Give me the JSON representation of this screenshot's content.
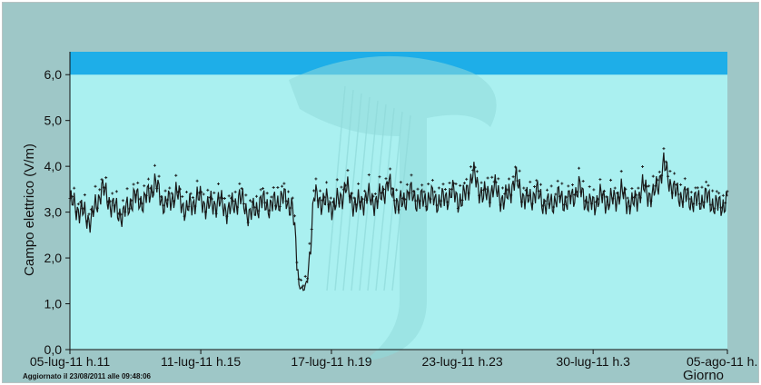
{
  "updated_text": "Aggiornato il 23/08/2011 alle 09:48:06",
  "colors": {
    "outer_bg": "#9ec7c7",
    "plot_bg": "#aaf0f0",
    "limit_band": "#1eaee8",
    "watermark": "#90dada",
    "series_line": "#1a1a1a",
    "markers": "#1a1a1a"
  },
  "chart_data": {
    "type": "line",
    "title": "",
    "xlabel": "Giorno",
    "ylabel": "Campo elettrico (V/m)",
    "ylim": [
      0,
      6.5
    ],
    "xlim_days": [
      0,
      31
    ],
    "yticks": [
      {
        "value": 0,
        "label": "0,0"
      },
      {
        "value": 1,
        "label": "1,0"
      },
      {
        "value": 2,
        "label": "2,0"
      },
      {
        "value": 3,
        "label": "3,0"
      },
      {
        "value": 4,
        "label": "4,0"
      },
      {
        "value": 5,
        "label": "5,0"
      },
      {
        "value": 6,
        "label": "6,0"
      }
    ],
    "xticks": [
      {
        "value": 0,
        "label": "05-lug-11 h.11"
      },
      {
        "value": 6.17,
        "label": "11-lug-11 h.15"
      },
      {
        "value": 12.33,
        "label": "17-lug-11 h.19"
      },
      {
        "value": 18.5,
        "label": "23-lug-11 h.23"
      },
      {
        "value": 24.67,
        "label": "30-lug-11 h.3"
      },
      {
        "value": 31,
        "label": "05-ago-11 h."
      }
    ],
    "limit_band": {
      "from": 6.0,
      "to": 6.5
    },
    "grid": false,
    "series": [
      {
        "values_are": "daily mean electric field (V/m) sampled from the plotted trace, x in days from 05-lug-11 h.11",
        "x": [
          0,
          0.5,
          1,
          1.5,
          2,
          2.5,
          3,
          3.5,
          4,
          4.5,
          5,
          5.5,
          6,
          6.5,
          7,
          7.5,
          8,
          8.5,
          9,
          9.5,
          10,
          10.5,
          10.8,
          11,
          11.2,
          11.5,
          12,
          12.5,
          13,
          13.5,
          14,
          14.5,
          15,
          15.5,
          16,
          16.5,
          17,
          17.5,
          18,
          18.5,
          19,
          19.5,
          20,
          20.5,
          21,
          21.5,
          22,
          22.5,
          23,
          23.5,
          24,
          24.5,
          25,
          25.5,
          26,
          26.5,
          27,
          27.5,
          28,
          28.5,
          29,
          29.5,
          30,
          30.5,
          31
        ],
        "y": [
          3.3,
          3.1,
          2.9,
          3.6,
          3.2,
          3.0,
          3.4,
          3.3,
          3.7,
          3.2,
          3.5,
          3.1,
          3.4,
          3.2,
          3.3,
          3.1,
          3.4,
          3.0,
          3.3,
          3.2,
          3.4,
          3.2,
          1.4,
          1.3,
          1.5,
          3.4,
          3.3,
          3.2,
          3.6,
          3.2,
          3.4,
          3.3,
          3.7,
          3.2,
          3.5,
          3.3,
          3.4,
          3.3,
          3.5,
          3.3,
          3.9,
          3.4,
          3.6,
          3.3,
          3.8,
          3.3,
          3.5,
          3.2,
          3.4,
          3.3,
          3.6,
          3.2,
          3.4,
          3.3,
          3.5,
          3.2,
          3.6,
          3.4,
          4.1,
          3.5,
          3.4,
          3.3,
          3.4,
          3.2,
          3.3
        ]
      }
    ]
  }
}
